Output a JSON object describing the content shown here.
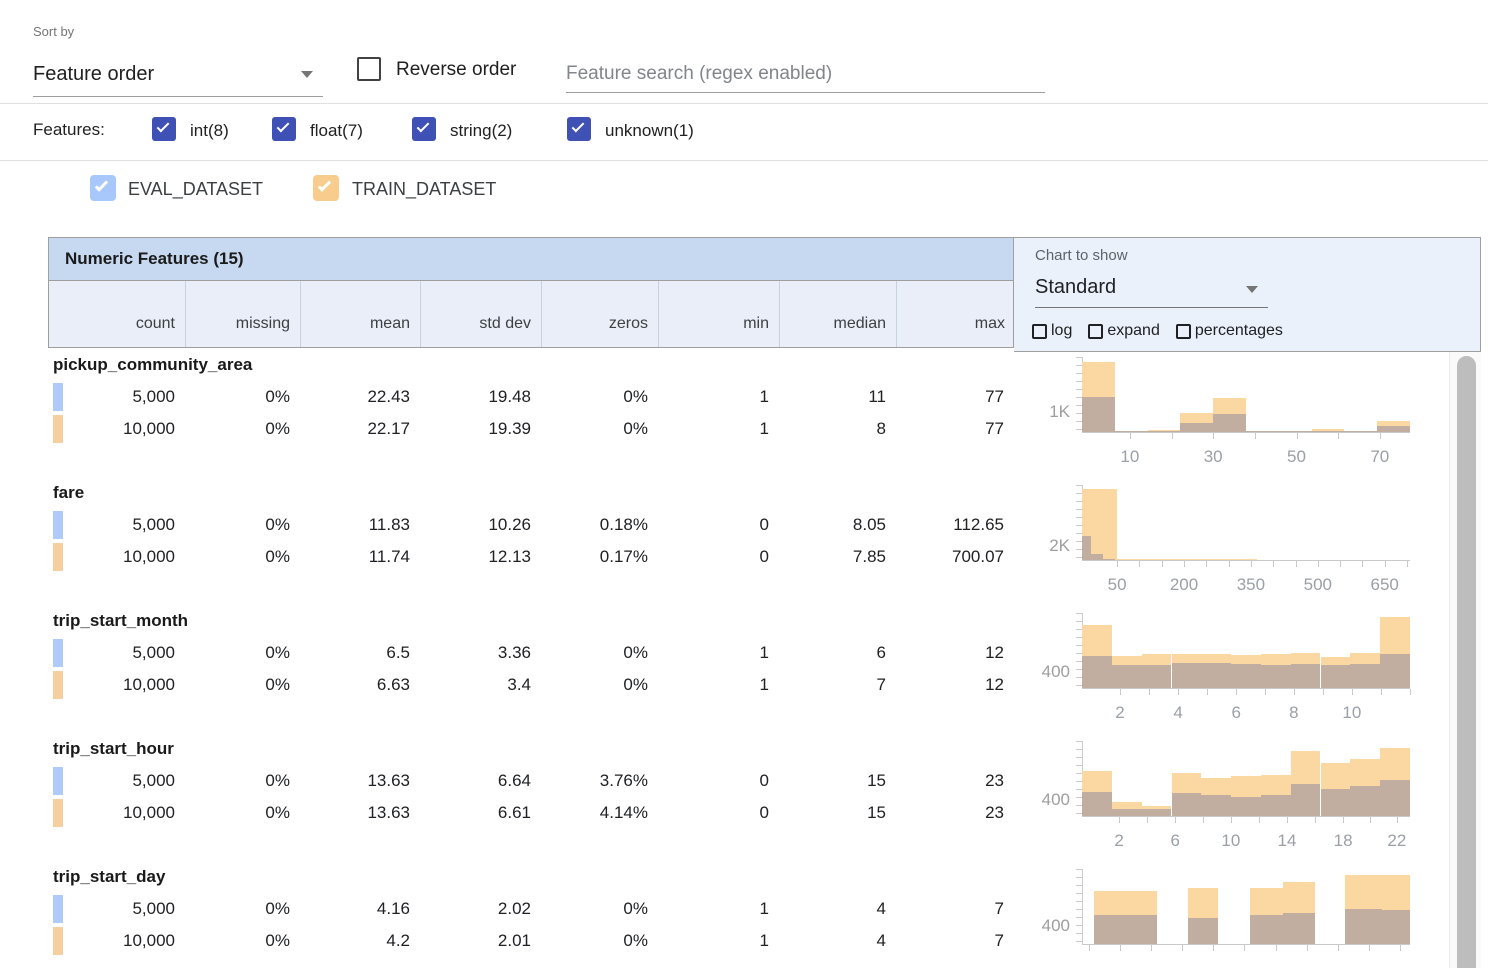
{
  "toolbar": {
    "sort_by_label": "Sort by",
    "sort_by_value": "Feature order",
    "reverse_order_label": "Reverse order",
    "search_placeholder": "Feature search (regex enabled)"
  },
  "filters": {
    "label": "Features:",
    "types": [
      {
        "label": "int(8)",
        "checked": true
      },
      {
        "label": "float(7)",
        "checked": true
      },
      {
        "label": "string(2)",
        "checked": true
      },
      {
        "label": "unknown(1)",
        "checked": true
      }
    ]
  },
  "datasets": [
    {
      "name": "EVAL_DATASET",
      "checkbox_color": "#a8c7fa",
      "marker_color": "#aecbfa",
      "checked": true
    },
    {
      "name": "TRAIN_DATASET",
      "checkbox_color": "#f8cc8c",
      "marker_color": "#f6cf9f",
      "checked": true
    }
  ],
  "chart_controls": {
    "label": "Chart to show",
    "value": "Standard",
    "checkboxes": [
      "log",
      "expand",
      "percentages"
    ]
  },
  "table": {
    "title": "Numeric Features (15)",
    "columns": [
      "count",
      "missing",
      "mean",
      "std dev",
      "zeros",
      "min",
      "median",
      "max"
    ],
    "features": [
      {
        "name": "pickup_community_area",
        "rows": [
          {
            "dataset": "EVAL_DATASET",
            "values": [
              "5,000",
              "0%",
              "22.43",
              "19.48",
              "0%",
              "1",
              "11",
              "77"
            ]
          },
          {
            "dataset": "TRAIN_DATASET",
            "values": [
              "10,000",
              "0%",
              "22.17",
              "19.39",
              "0%",
              "1",
              "8",
              "77"
            ]
          }
        ]
      },
      {
        "name": "fare",
        "rows": [
          {
            "dataset": "EVAL_DATASET",
            "values": [
              "5,000",
              "0%",
              "11.83",
              "10.26",
              "0.18%",
              "0",
              "8.05",
              "112.65"
            ]
          },
          {
            "dataset": "TRAIN_DATASET",
            "values": [
              "10,000",
              "0%",
              "11.74",
              "12.13",
              "0.17%",
              "0",
              "7.85",
              "700.07"
            ]
          }
        ]
      },
      {
        "name": "trip_start_month",
        "rows": [
          {
            "dataset": "EVAL_DATASET",
            "values": [
              "5,000",
              "0%",
              "6.5",
              "3.36",
              "0%",
              "1",
              "6",
              "12"
            ]
          },
          {
            "dataset": "TRAIN_DATASET",
            "values": [
              "10,000",
              "0%",
              "6.63",
              "3.4",
              "0%",
              "1",
              "7",
              "12"
            ]
          }
        ]
      },
      {
        "name": "trip_start_hour",
        "rows": [
          {
            "dataset": "EVAL_DATASET",
            "values": [
              "5,000",
              "0%",
              "13.63",
              "6.64",
              "3.76%",
              "0",
              "15",
              "23"
            ]
          },
          {
            "dataset": "TRAIN_DATASET",
            "values": [
              "10,000",
              "0%",
              "13.63",
              "6.61",
              "4.14%",
              "0",
              "15",
              "23"
            ]
          }
        ]
      },
      {
        "name": "trip_start_day",
        "rows": [
          {
            "dataset": "EVAL_DATASET",
            "values": [
              "5,000",
              "0%",
              "4.16",
              "2.02",
              "0%",
              "1",
              "4",
              "7"
            ]
          },
          {
            "dataset": "TRAIN_DATASET",
            "values": [
              "10,000",
              "0%",
              "4.2",
              "2.01",
              "0%",
              "1",
              "4",
              "7"
            ]
          }
        ]
      }
    ]
  },
  "chart_data": [
    {
      "type": "histogram",
      "feature": "pickup_community_area",
      "y_axis_label": "1K",
      "y_label_value": 1000,
      "ymax": 3500,
      "x_tick_labels": [
        {
          "text": "10",
          "f": 0.146
        },
        {
          "text": "30",
          "f": 0.4
        },
        {
          "text": "50",
          "f": 0.654
        },
        {
          "text": "70",
          "f": 0.908
        }
      ],
      "minor_ticks": [
        0.146,
        0.273,
        0.4,
        0.527,
        0.654,
        0.781,
        0.908
      ],
      "series": [
        {
          "name": "TRAIN_DATASET",
          "color": "#fbd7a2",
          "bars": [
            {
              "x0": 0.0,
              "x1": 0.1,
              "v": 3240
            },
            {
              "x0": 0.1,
              "x1": 0.2,
              "v": 30
            },
            {
              "x0": 0.2,
              "x1": 0.3,
              "v": 80
            },
            {
              "x0": 0.3,
              "x1": 0.4,
              "v": 860
            },
            {
              "x0": 0.4,
              "x1": 0.5,
              "v": 1570
            },
            {
              "x0": 0.5,
              "x1": 0.6,
              "v": 20
            },
            {
              "x0": 0.6,
              "x1": 0.7,
              "v": 20
            },
            {
              "x0": 0.7,
              "x1": 0.8,
              "v": 140
            },
            {
              "x0": 0.8,
              "x1": 0.9,
              "v": 15
            },
            {
              "x0": 0.9,
              "x1": 1.0,
              "v": 520
            }
          ]
        },
        {
          "name": "EVAL_DATASET",
          "color": "rgba(125,125,160,0.45)",
          "bars": [
            {
              "x0": 0.0,
              "x1": 0.1,
              "v": 1620
            },
            {
              "x0": 0.1,
              "x1": 0.2,
              "v": 15
            },
            {
              "x0": 0.2,
              "x1": 0.3,
              "v": 40
            },
            {
              "x0": 0.3,
              "x1": 0.4,
              "v": 430
            },
            {
              "x0": 0.4,
              "x1": 0.5,
              "v": 810
            },
            {
              "x0": 0.5,
              "x1": 0.6,
              "v": 10
            },
            {
              "x0": 0.6,
              "x1": 0.7,
              "v": 10
            },
            {
              "x0": 0.7,
              "x1": 0.8,
              "v": 70
            },
            {
              "x0": 0.8,
              "x1": 0.9,
              "v": 8
            },
            {
              "x0": 0.9,
              "x1": 1.0,
              "v": 280
            }
          ]
        }
      ]
    },
    {
      "type": "histogram",
      "feature": "fare",
      "y_axis_label": "2K",
      "y_label_value": 2000,
      "ymax": 9200,
      "x_tick_labels": [
        {
          "text": "50",
          "f": 0.107
        },
        {
          "text": "200",
          "f": 0.311
        },
        {
          "text": "350",
          "f": 0.515
        },
        {
          "text": "500",
          "f": 0.719
        },
        {
          "text": "650",
          "f": 0.923
        }
      ],
      "minor_ticks": [
        0.107,
        0.175,
        0.243,
        0.311,
        0.379,
        0.447,
        0.515,
        0.583,
        0.651,
        0.719,
        0.787,
        0.855,
        0.923,
        0.991
      ],
      "series": [
        {
          "name": "TRAIN_DATASET",
          "color": "#fbd7a2",
          "bars": [
            {
              "x0": 0.0,
              "x1": 0.107,
              "v": 8600
            },
            {
              "x0": 0.107,
              "x1": 0.214,
              "v": 130
            },
            {
              "x0": 0.214,
              "x1": 0.321,
              "v": 50
            },
            {
              "x0": 0.321,
              "x1": 0.428,
              "v": 20
            },
            {
              "x0": 0.428,
              "x1": 0.535,
              "v": 10
            }
          ]
        },
        {
          "name": "EVAL_DATASET",
          "color": "rgba(125,125,160,0.45)",
          "bars": [
            {
              "x0": 0.0,
              "x1": 0.027,
              "v": 2900
            },
            {
              "x0": 0.027,
              "x1": 0.064,
              "v": 720
            },
            {
              "x0": 0.064,
              "x1": 0.1,
              "v": 180
            }
          ]
        }
      ]
    },
    {
      "type": "histogram",
      "feature": "trip_start_month",
      "y_axis_label": "400",
      "y_label_value": 400,
      "ymax": 1640,
      "x_tick_labels": [
        {
          "text": "2",
          "f": 0.116
        },
        {
          "text": "4",
          "f": 0.293
        },
        {
          "text": "6",
          "f": 0.47
        },
        {
          "text": "8",
          "f": 0.646
        },
        {
          "text": "10",
          "f": 0.823
        }
      ],
      "minor_ticks": [
        0.116,
        0.2045,
        0.293,
        0.3815,
        0.47,
        0.558,
        0.646,
        0.7345,
        0.823,
        0.9115,
        1.0
      ],
      "series": [
        {
          "name": "TRAIN_DATASET",
          "color": "#fbd7a2",
          "bars": [
            {
              "x0": 0.0,
              "x1": 0.091,
              "v": 1360
            },
            {
              "x0": 0.091,
              "x1": 0.182,
              "v": 700
            },
            {
              "x0": 0.182,
              "x1": 0.273,
              "v": 730
            },
            {
              "x0": 0.273,
              "x1": 0.364,
              "v": 745
            },
            {
              "x0": 0.364,
              "x1": 0.455,
              "v": 735
            },
            {
              "x0": 0.455,
              "x1": 0.545,
              "v": 715
            },
            {
              "x0": 0.545,
              "x1": 0.636,
              "v": 725
            },
            {
              "x0": 0.636,
              "x1": 0.727,
              "v": 760
            },
            {
              "x0": 0.727,
              "x1": 0.818,
              "v": 680
            },
            {
              "x0": 0.818,
              "x1": 0.909,
              "v": 760
            },
            {
              "x0": 0.909,
              "x1": 1.0,
              "v": 1530
            }
          ]
        },
        {
          "name": "EVAL_DATASET",
          "color": "rgba(125,125,160,0.45)",
          "bars": [
            {
              "x0": 0.0,
              "x1": 0.091,
              "v": 690
            },
            {
              "x0": 0.091,
              "x1": 0.182,
              "v": 500
            },
            {
              "x0": 0.182,
              "x1": 0.273,
              "v": 505
            },
            {
              "x0": 0.273,
              "x1": 0.364,
              "v": 530
            },
            {
              "x0": 0.364,
              "x1": 0.455,
              "v": 540
            },
            {
              "x0": 0.455,
              "x1": 0.545,
              "v": 515
            },
            {
              "x0": 0.545,
              "x1": 0.636,
              "v": 500
            },
            {
              "x0": 0.636,
              "x1": 0.727,
              "v": 510
            },
            {
              "x0": 0.727,
              "x1": 0.818,
              "v": 500
            },
            {
              "x0": 0.818,
              "x1": 0.909,
              "v": 515
            },
            {
              "x0": 0.909,
              "x1": 1.0,
              "v": 730
            }
          ]
        }
      ]
    },
    {
      "type": "histogram",
      "feature": "trip_start_hour",
      "y_axis_label": "400",
      "y_label_value": 400,
      "ymax": 1640,
      "x_tick_labels": [
        {
          "text": "2",
          "f": 0.113
        },
        {
          "text": "6",
          "f": 0.284
        },
        {
          "text": "10",
          "f": 0.454
        },
        {
          "text": "14",
          "f": 0.625
        },
        {
          "text": "18",
          "f": 0.796
        },
        {
          "text": "22",
          "f": 0.96
        }
      ],
      "minor_ticks": [
        0.113,
        0.1985,
        0.284,
        0.369,
        0.454,
        0.5395,
        0.625,
        0.7105,
        0.796,
        0.878,
        0.96
      ],
      "series": [
        {
          "name": "TRAIN_DATASET",
          "color": "#fbd7a2",
          "bars": [
            {
              "x0": 0.0,
              "x1": 0.091,
              "v": 980
            },
            {
              "x0": 0.091,
              "x1": 0.182,
              "v": 310
            },
            {
              "x0": 0.182,
              "x1": 0.273,
              "v": 220
            },
            {
              "x0": 0.273,
              "x1": 0.364,
              "v": 930
            },
            {
              "x0": 0.364,
              "x1": 0.455,
              "v": 820
            },
            {
              "x0": 0.455,
              "x1": 0.545,
              "v": 865
            },
            {
              "x0": 0.545,
              "x1": 0.636,
              "v": 890
            },
            {
              "x0": 0.636,
              "x1": 0.727,
              "v": 1400
            },
            {
              "x0": 0.727,
              "x1": 0.818,
              "v": 1150
            },
            {
              "x0": 0.818,
              "x1": 0.909,
              "v": 1240
            },
            {
              "x0": 0.909,
              "x1": 1.0,
              "v": 1470
            }
          ]
        },
        {
          "name": "EVAL_DATASET",
          "color": "rgba(125,125,160,0.45)",
          "bars": [
            {
              "x0": 0.0,
              "x1": 0.091,
              "v": 510
            },
            {
              "x0": 0.091,
              "x1": 0.182,
              "v": 155
            },
            {
              "x0": 0.182,
              "x1": 0.273,
              "v": 150
            },
            {
              "x0": 0.273,
              "x1": 0.364,
              "v": 490
            },
            {
              "x0": 0.364,
              "x1": 0.455,
              "v": 465
            },
            {
              "x0": 0.455,
              "x1": 0.545,
              "v": 420
            },
            {
              "x0": 0.545,
              "x1": 0.636,
              "v": 465
            },
            {
              "x0": 0.636,
              "x1": 0.727,
              "v": 690
            },
            {
              "x0": 0.727,
              "x1": 0.818,
              "v": 580
            },
            {
              "x0": 0.818,
              "x1": 0.909,
              "v": 645
            },
            {
              "x0": 0.909,
              "x1": 1.0,
              "v": 780
            }
          ]
        }
      ]
    },
    {
      "type": "histogram",
      "feature": "trip_start_day",
      "y_axis_label": "400",
      "y_label_value": 400,
      "ymax": 1480,
      "x_tick_labels": [],
      "minor_ticks": [
        0.02,
        0.115,
        0.21,
        0.305,
        0.4,
        0.495,
        0.59,
        0.685,
        0.78,
        0.875,
        0.97
      ],
      "series": [
        {
          "name": "TRAIN_DATASET",
          "color": "#fbd7a2",
          "bars": [
            {
              "x0": 0.037,
              "x1": 0.125,
              "v": 1040
            },
            {
              "x0": 0.125,
              "x1": 0.229,
              "v": 1040
            },
            {
              "x0": 0.323,
              "x1": 0.415,
              "v": 1100
            },
            {
              "x0": 0.512,
              "x1": 0.613,
              "v": 1100
            },
            {
              "x0": 0.613,
              "x1": 0.71,
              "v": 1200
            },
            {
              "x0": 0.802,
              "x1": 0.915,
              "v": 1340
            },
            {
              "x0": 0.915,
              "x1": 1.0,
              "v": 1340
            }
          ]
        },
        {
          "name": "EVAL_DATASET",
          "color": "rgba(125,125,160,0.45)",
          "bars": [
            {
              "x0": 0.037,
              "x1": 0.125,
              "v": 560
            },
            {
              "x0": 0.125,
              "x1": 0.229,
              "v": 560
            },
            {
              "x0": 0.323,
              "x1": 0.415,
              "v": 500
            },
            {
              "x0": 0.512,
              "x1": 0.613,
              "v": 560
            },
            {
              "x0": 0.613,
              "x1": 0.71,
              "v": 600
            },
            {
              "x0": 0.802,
              "x1": 0.915,
              "v": 680
            },
            {
              "x0": 0.915,
              "x1": 1.0,
              "v": 660
            }
          ]
        }
      ]
    }
  ]
}
